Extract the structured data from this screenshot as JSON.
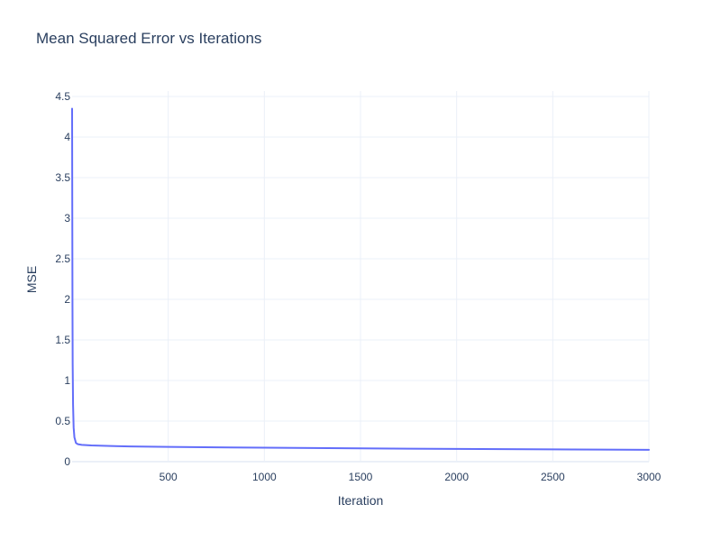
{
  "chart_data": {
    "type": "line",
    "title": "Mean Squared Error vs Iterations",
    "xlabel": "Iteration",
    "ylabel": "MSE",
    "xlim": [
      0,
      3000
    ],
    "ylim": [
      0,
      4.5
    ],
    "x_ticks": [
      500,
      1000,
      1500,
      2000,
      2500,
      3000
    ],
    "x_tick_labels": [
      "500",
      "1000",
      "1500",
      "2000",
      "2500",
      "3000"
    ],
    "y_ticks": [
      0,
      0.5,
      1,
      1.5,
      2,
      2.5,
      3,
      3.5,
      4,
      4.5
    ],
    "y_tick_labels": [
      "0",
      "0.5",
      "1",
      "1.5",
      "2",
      "2.5",
      "3",
      "3.5",
      "4",
      "4.5"
    ],
    "grid": true,
    "colors": {
      "line": "#636efa",
      "grid": "#ebf0f8",
      "zeroline": "#ebf0f8",
      "text": "#2a3f5f"
    },
    "series": [
      {
        "x": [
          0,
          1,
          2,
          3,
          5,
          8,
          12,
          20,
          30,
          50,
          100,
          200,
          300,
          500,
          750,
          1000,
          1250,
          1500,
          1750,
          2000,
          2250,
          2500,
          2750,
          3000
        ],
        "values": [
          4.35,
          3.1,
          1.9,
          1.2,
          0.7,
          0.42,
          0.3,
          0.23,
          0.215,
          0.207,
          0.2,
          0.193,
          0.188,
          0.182,
          0.177,
          0.172,
          0.168,
          0.164,
          0.16,
          0.157,
          0.154,
          0.151,
          0.148,
          0.146
        ]
      }
    ]
  }
}
